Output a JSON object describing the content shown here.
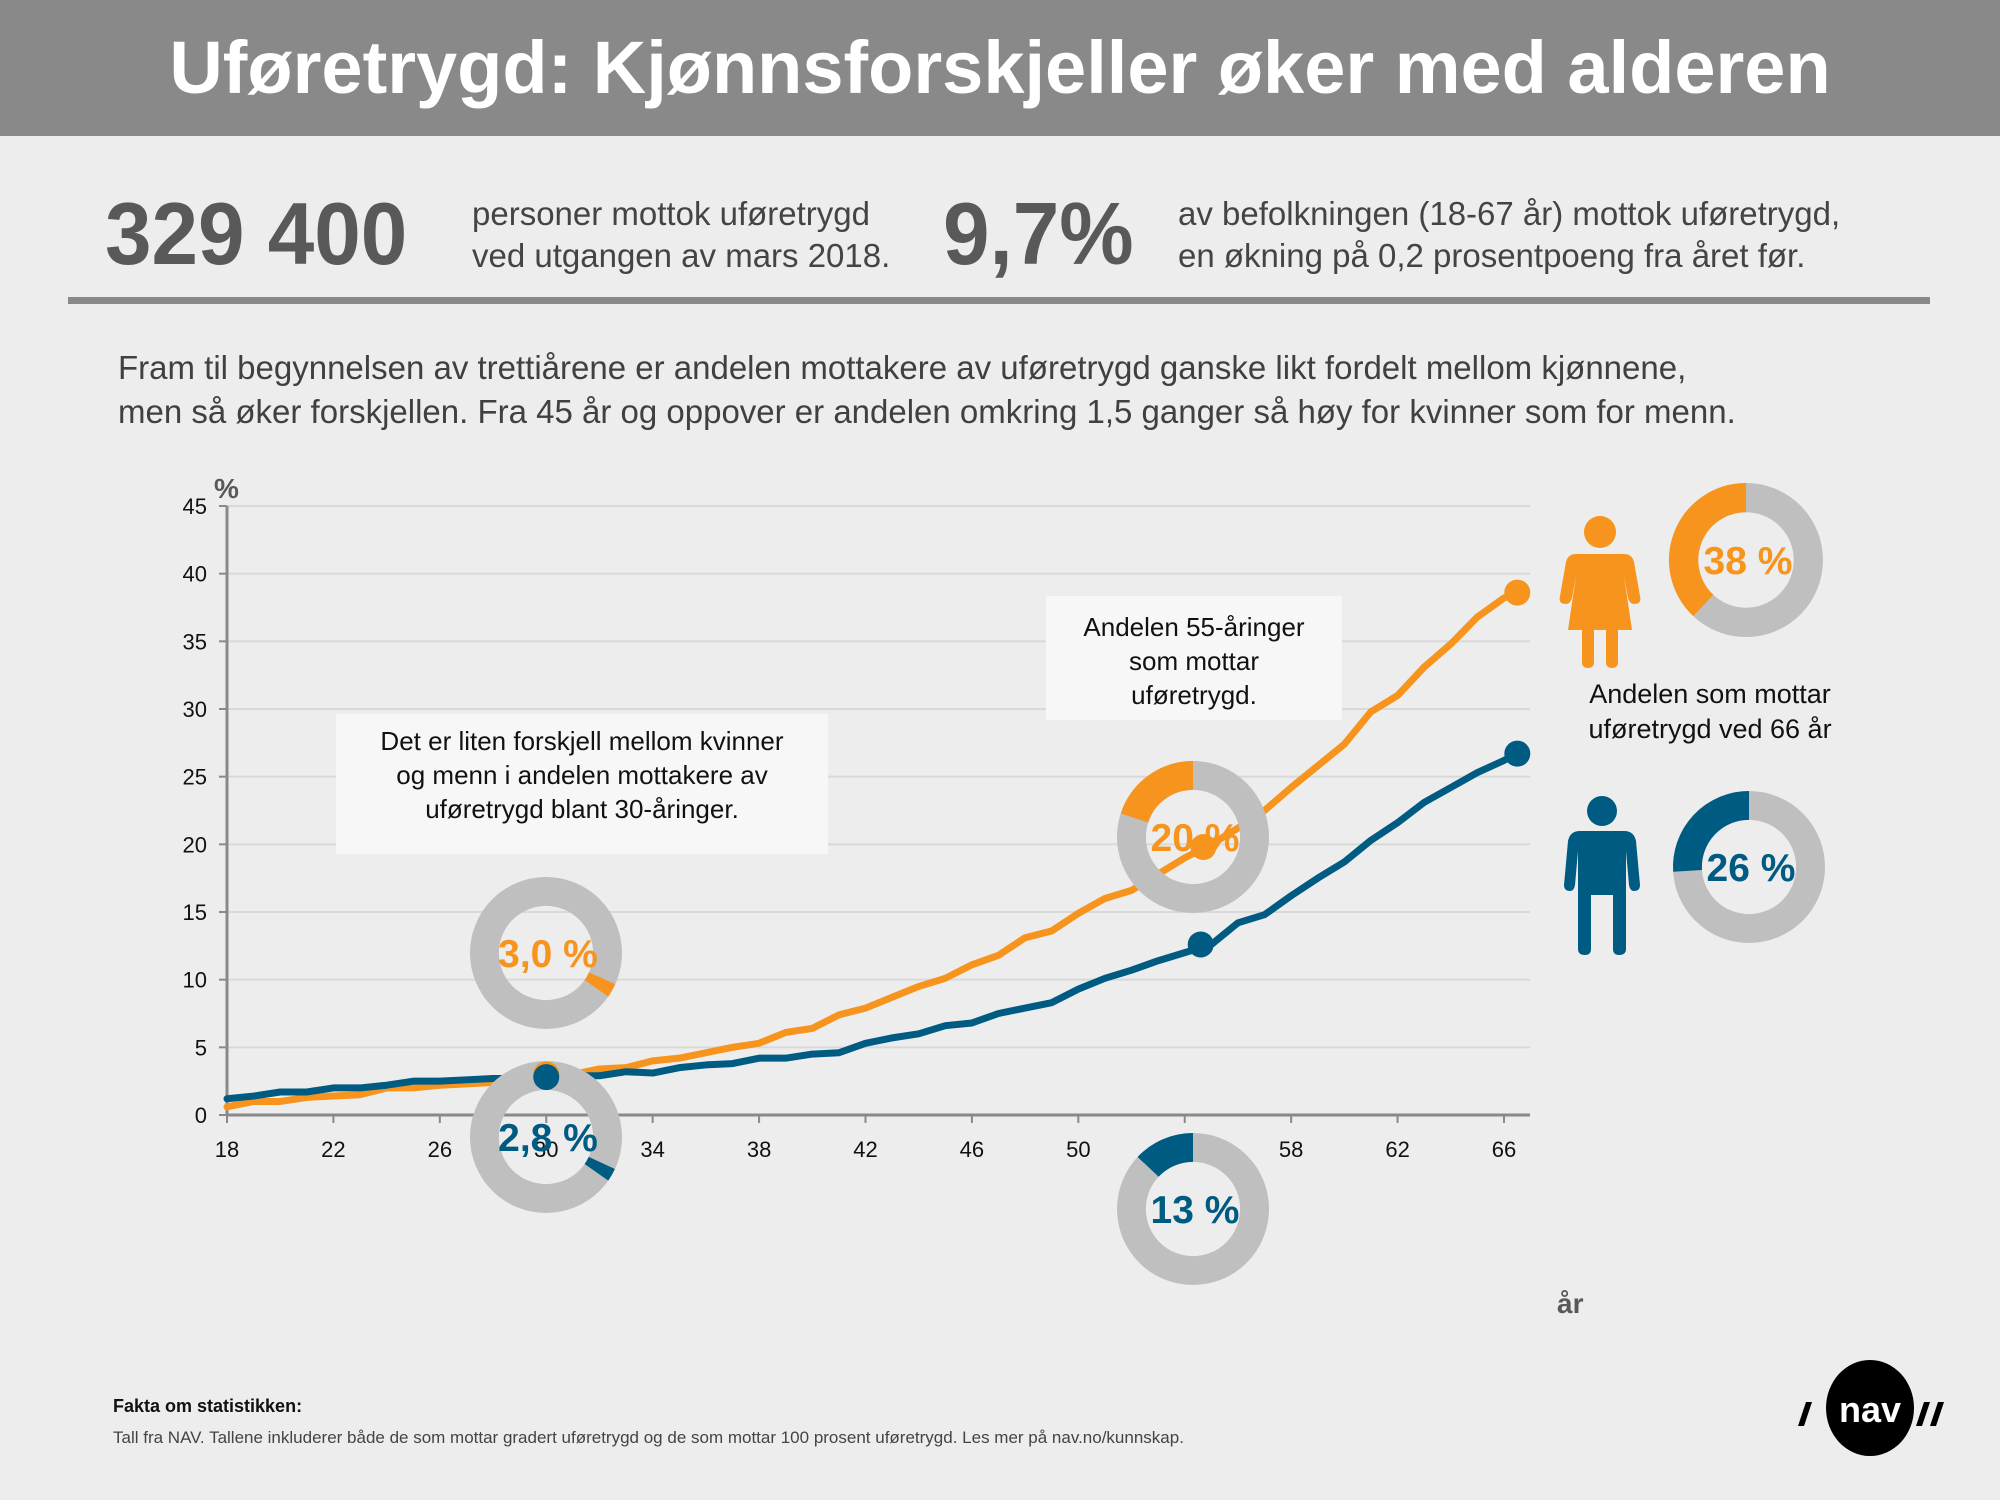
{
  "header": {
    "title": "Uføretrygd: Kjønnsforskjeller øker med alderen"
  },
  "stats": [
    {
      "value": "329 400",
      "line1": "personer mottok uføretrygd",
      "line2": "ved utgangen av mars 2018."
    },
    {
      "value": "9,7%",
      "line1": "av befolkningen (18-67 år) mottok uføretrygd,",
      "line2": "en økning på 0,2 prosentpoeng fra året før."
    }
  ],
  "intro": {
    "line1": "Fram til begynnelsen av trettiårene er andelen mottakere av uføretrygd ganske likt fordelt mellom kjønnene,",
    "line2": "men så øker forskjellen. Fra 45 år og oppover er andelen omkring 1,5 ganger så høy for kvinner som for menn."
  },
  "colors": {
    "women": "#f7941d",
    "men": "#005b82",
    "donut_track": "#bfbfbf",
    "grid": "#d9d9d9",
    "axis": "#898989"
  },
  "chart_data": {
    "type": "line",
    "title": "",
    "ylabel": "%",
    "xlabel": "år",
    "ylim": [
      0,
      45
    ],
    "xlim": [
      18,
      66.5
    ],
    "yticks": [
      0,
      5,
      10,
      15,
      20,
      25,
      30,
      35,
      40,
      45
    ],
    "xticks": [
      18,
      22,
      26,
      30,
      34,
      38,
      42,
      46,
      50,
      54,
      58,
      62,
      66
    ],
    "grid": true,
    "x": [
      18,
      19,
      20,
      21,
      22,
      23,
      24,
      25,
      26,
      27,
      28,
      29,
      30,
      31,
      32,
      33,
      34,
      35,
      36,
      37,
      38,
      39,
      40,
      41,
      42,
      43,
      44,
      45,
      46,
      47,
      48,
      49,
      50,
      51,
      52,
      53,
      54,
      55,
      56,
      57,
      58,
      59,
      60,
      61,
      62,
      63,
      64,
      65,
      66,
      66.5
    ],
    "series": [
      {
        "name": "Kvinner",
        "color": "#f7941d",
        "values": [
          0.6,
          1.0,
          1.0,
          1.3,
          1.4,
          1.5,
          2.0,
          2.0,
          2.2,
          2.3,
          2.4,
          2.6,
          3.0,
          3.0,
          3.4,
          3.5,
          4.0,
          4.2,
          4.6,
          5.0,
          5.3,
          6.1,
          6.4,
          7.4,
          7.9,
          8.7,
          9.5,
          10.1,
          11.1,
          11.8,
          13.1,
          13.6,
          14.9,
          16.0,
          16.6,
          17.8,
          19.0,
          20.0,
          21.2,
          22.5,
          24.2,
          25.8,
          27.4,
          29.8,
          31.0,
          33.1,
          34.8,
          36.8,
          38.2,
          38.6
        ]
      },
      {
        "name": "Menn",
        "color": "#005b82",
        "values": [
          1.2,
          1.4,
          1.7,
          1.7,
          2.0,
          2.0,
          2.2,
          2.5,
          2.5,
          2.6,
          2.7,
          2.7,
          2.8,
          2.9,
          2.9,
          3.2,
          3.1,
          3.5,
          3.7,
          3.8,
          4.2,
          4.2,
          4.5,
          4.6,
          5.3,
          5.7,
          6.0,
          6.6,
          6.8,
          7.5,
          7.9,
          8.3,
          9.3,
          10.1,
          10.7,
          11.4,
          12.0,
          12.6,
          14.2,
          14.8,
          16.2,
          17.5,
          18.7,
          20.3,
          21.6,
          23.1,
          24.2,
          25.3,
          26.2,
          26.7
        ]
      }
    ],
    "highlights": [
      {
        "series": "Kvinner",
        "x": 30,
        "y": 3.0
      },
      {
        "series": "Menn",
        "x": 30,
        "y": 2.8
      },
      {
        "series": "Kvinner",
        "x": 54.7,
        "y": 19.8
      },
      {
        "series": "Menn",
        "x": 54.6,
        "y": 12.6
      },
      {
        "series": "Kvinner",
        "x": 66.5,
        "y": 38.6
      },
      {
        "series": "Menn",
        "x": 66.5,
        "y": 26.7
      }
    ],
    "donuts": [
      {
        "id": "w30",
        "label": "3,0 %",
        "value": 3.0,
        "series": "Kvinner"
      },
      {
        "id": "m30",
        "label": "2,8 %",
        "value": 2.8,
        "series": "Menn"
      },
      {
        "id": "w55",
        "label": "20 %",
        "value": 20,
        "series": "Kvinner"
      },
      {
        "id": "m55",
        "label": "13 %",
        "value": 13,
        "series": "Menn"
      },
      {
        "id": "w66",
        "label": "38 %",
        "value": 38,
        "series": "Kvinner"
      },
      {
        "id": "m66",
        "label": "26 %",
        "value": 26,
        "series": "Menn"
      }
    ],
    "annotations": {
      "age30": [
        "Det er liten forskjell mellom kvinner",
        "og menn i andelen mottakere av",
        "uføretrygd blant 30-åringer."
      ],
      "age55": [
        "Andelen 55-åringer",
        "som mottar",
        "uføretrygd."
      ],
      "age66": [
        "Andelen som mottar",
        "uføretrygd ved 66 år"
      ]
    }
  },
  "footer": {
    "title": "Fakta om statistikken:",
    "body": "Tall fra NAV. Tallene inkluderer både de som mottar gradert uføretrygd og de som mottar 100 prosent uføretrygd. Les mer på nav.no/kunnskap.",
    "logo_text": "nav"
  }
}
